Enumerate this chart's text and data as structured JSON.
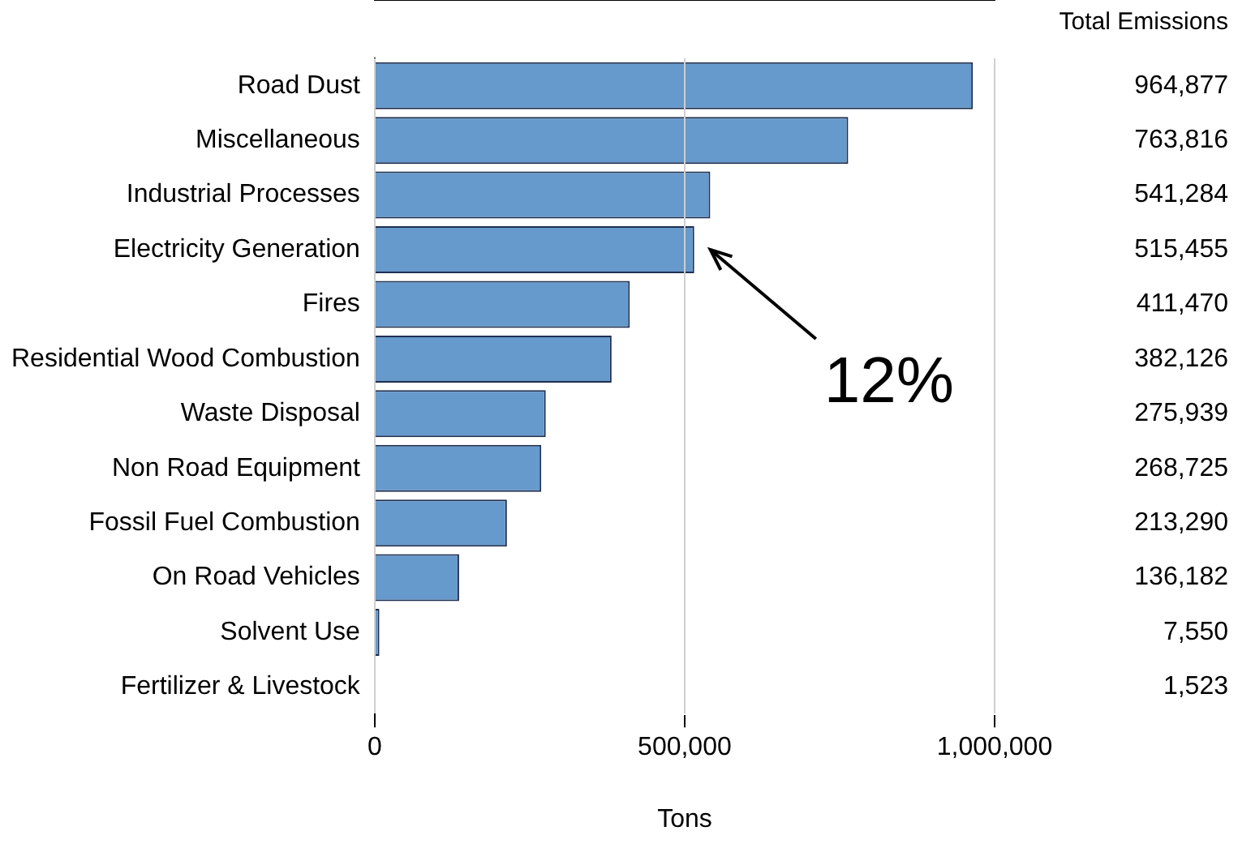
{
  "chart_data": {
    "type": "bar",
    "orientation": "horizontal",
    "xlabel": "Tons",
    "categories": [
      "Road Dust",
      "Miscellaneous",
      "Industrial Processes",
      "Electricity Generation",
      "Fires",
      "Residential Wood Combustion",
      "Waste Disposal",
      "Non Road Equipment",
      "Fossil Fuel Combustion",
      "On Road Vehicles",
      "Solvent Use",
      "Fertilizer & Livestock"
    ],
    "values": [
      964877,
      763816,
      541284,
      515455,
      411470,
      382126,
      275939,
      268725,
      213290,
      136182,
      7550,
      1523
    ],
    "color": "#6699cc",
    "xlim": [
      0,
      1000000
    ],
    "xticks": [
      0,
      {
        "value": 500000,
        "label": "500,000"
      },
      {
        "value": 1000000,
        "label": "1,000,000"
      }
    ],
    "grid": "x",
    "value_labels": [
      "964,877",
      "763,816",
      "541,284",
      "515,455",
      "411,470",
      "382,126",
      "275,939",
      "268,725",
      "213,290",
      "136,182",
      "7,550",
      "1,523"
    ],
    "annotations": [
      "Total Emissions",
      {
        "text": "12%",
        "x": 515455,
        "y": "Electricity Generation"
      }
    ]
  }
}
